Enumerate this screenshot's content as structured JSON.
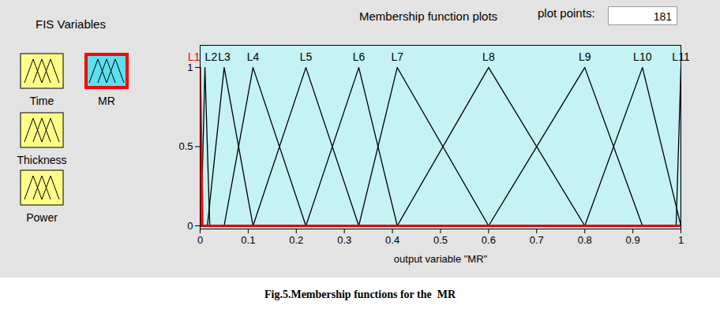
{
  "chart_data": {
    "type": "line",
    "title": "Membership function plots",
    "xlabel": "output variable \"MR\"",
    "caption": "Fig.5.Membership functions for the  MR",
    "fis_variables": {
      "title": "FIS Variables",
      "items": [
        "Time",
        "MR",
        "Thickness",
        "Power"
      ],
      "selected": "MR"
    },
    "plot_points": {
      "label": "plot points:",
      "value": 181
    },
    "xlim": [
      0,
      1
    ],
    "xticks": [
      0,
      0.1,
      0.2,
      0.3,
      0.4,
      0.5,
      0.6,
      0.7,
      0.8,
      0.9,
      1
    ],
    "ylim": [
      -0.02,
      1.14
    ],
    "yticks": [
      0,
      0.5,
      1
    ],
    "grid": false,
    "series": [
      {
        "name": "L1",
        "color": "#ff0000",
        "x": [
          0,
          0,
          0.005,
          1
        ],
        "values": [
          0,
          1,
          0,
          0
        ]
      },
      {
        "name": "L2",
        "color": "#000000",
        "x": [
          0,
          0.002,
          0.01,
          0.02,
          1
        ],
        "values": [
          0,
          0,
          1,
          0,
          0
        ]
      },
      {
        "name": "L3",
        "color": "#000000",
        "x": [
          0,
          0.015,
          0.05,
          0.11,
          1
        ],
        "values": [
          0,
          0,
          1,
          0,
          0
        ]
      },
      {
        "name": "L4",
        "color": "#000000",
        "x": [
          0,
          0.05,
          0.11,
          0.22,
          1
        ],
        "values": [
          0,
          0,
          1,
          0,
          0
        ]
      },
      {
        "name": "L5",
        "color": "#000000",
        "x": [
          0,
          0.11,
          0.22,
          0.33,
          1
        ],
        "values": [
          0,
          0,
          1,
          0,
          0
        ]
      },
      {
        "name": "L6",
        "color": "#000000",
        "x": [
          0,
          0.22,
          0.33,
          0.41,
          1
        ],
        "values": [
          0,
          0,
          1,
          0,
          0
        ]
      },
      {
        "name": "L7",
        "color": "#000000",
        "x": [
          0,
          0.33,
          0.41,
          0.6,
          1
        ],
        "values": [
          0,
          0,
          1,
          0,
          0
        ]
      },
      {
        "name": "L8",
        "color": "#000000",
        "x": [
          0,
          0.41,
          0.6,
          0.8,
          1
        ],
        "values": [
          0,
          0,
          1,
          0,
          0
        ]
      },
      {
        "name": "L9",
        "color": "#000000",
        "x": [
          0,
          0.6,
          0.8,
          0.92,
          1
        ],
        "values": [
          0,
          0,
          1,
          0,
          0
        ]
      },
      {
        "name": "L10",
        "color": "#000000",
        "x": [
          0,
          0.8,
          0.92,
          1
        ],
        "values": [
          0,
          0,
          1,
          0
        ]
      },
      {
        "name": "L11",
        "color": "#000000",
        "x": [
          0,
          0.99,
          1,
          1
        ],
        "values": [
          0,
          0,
          1,
          0
        ]
      }
    ]
  }
}
